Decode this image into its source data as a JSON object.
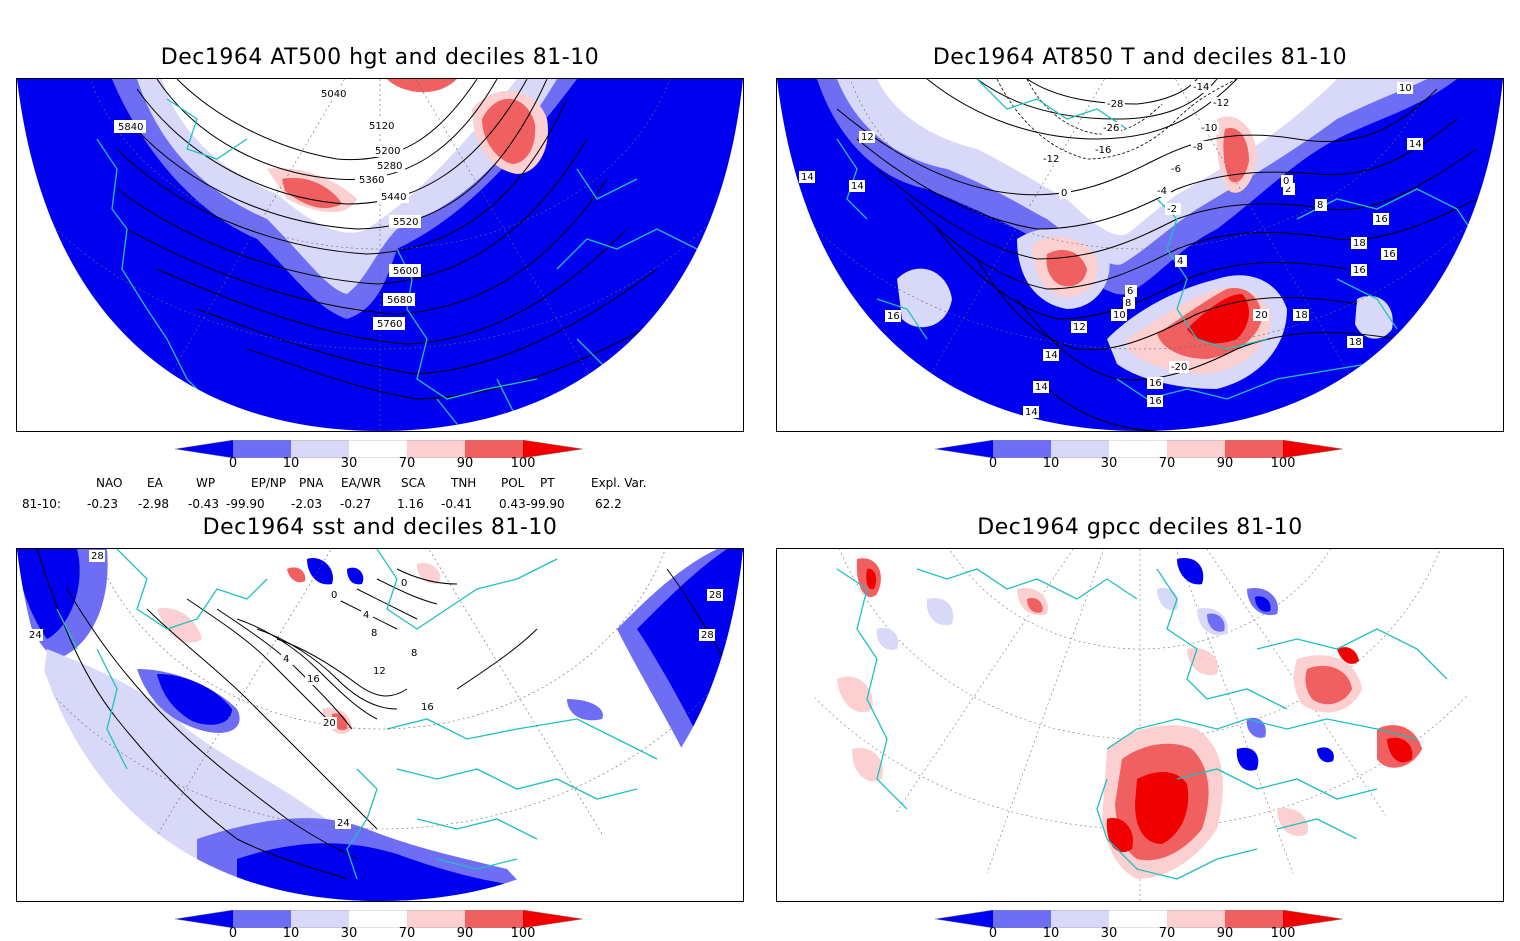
{
  "panels": [
    {
      "id": "p1",
      "title": "Dec1964 AT500 hgt and deciles 81-10",
      "contour_labels": [
        "5040",
        "5120",
        "5200",
        "5280",
        "5360",
        "5440",
        "5520",
        "5600",
        "5680",
        "5760",
        "5840"
      ]
    },
    {
      "id": "p2",
      "title": "Dec1964 AT850 T and deciles 81-10",
      "contour_labels": [
        "-28",
        "-26",
        "-16",
        "-14",
        "-12",
        "-12",
        "-10",
        "-8",
        "-6",
        "-4",
        "-2",
        "0",
        "2",
        "0",
        "4",
        "6",
        "8",
        "10",
        "12",
        "14",
        "16",
        "16",
        "16",
        "18",
        "18",
        "20",
        "-20",
        "14",
        "14",
        "14",
        "14",
        "16",
        "18",
        "12",
        "14",
        "16",
        "10",
        "8",
        "16"
      ]
    },
    {
      "id": "p3",
      "title": "Dec1964 sst and deciles 81-10",
      "contour_labels": [
        "28",
        "24",
        "0",
        "4",
        "8",
        "12",
        "16",
        "20",
        "24",
        "0",
        "4",
        "8",
        "16",
        "28",
        "28"
      ]
    },
    {
      "id": "p4",
      "title": "Dec1964 gpcc deciles 81-10",
      "contour_labels": []
    }
  ],
  "colorbar": {
    "ticks": [
      "0",
      "10",
      "30",
      "70",
      "90",
      "100"
    ],
    "colors": [
      "#0000f0",
      "#6e6ef5",
      "#d8d8f8",
      "#ffffff",
      "#fcd0d0",
      "#f06060",
      "#f00000"
    ]
  },
  "indices": {
    "row_label": "81-10:",
    "headers": [
      "NAO",
      "EA",
      "WP",
      "EP/NP",
      "PNA",
      "EA/WR",
      "SCA",
      "TNH",
      "POL",
      "PT",
      "Expl. Var."
    ],
    "values": [
      "-0.23",
      "-2.98",
      "-0.43",
      "-99.90",
      "-2.03",
      "-0.27",
      "1.16",
      "-0.41",
      "0.43",
      "-99.90",
      "62.2"
    ]
  },
  "colors": {
    "coast": "#20c0c0",
    "blue": "#0000f0",
    "mblue": "#6e6ef5",
    "lblue": "#d8d8f8",
    "lred": "#fcd0d0",
    "mred": "#f06060",
    "red": "#f00000"
  }
}
